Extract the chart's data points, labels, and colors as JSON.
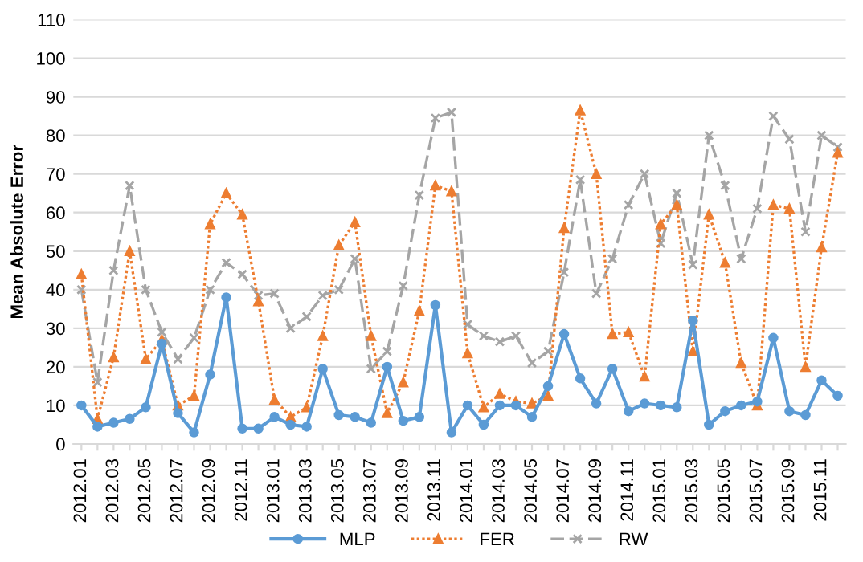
{
  "chart_data": {
    "type": "line",
    "ylabel": "Mean Absolute Error",
    "categories": [
      "2012.01",
      null,
      "2012.03",
      null,
      "2012.05",
      null,
      "2012.07",
      null,
      "2012.09",
      null,
      "2012.11",
      null,
      "2013.01",
      null,
      "2013.03",
      null,
      "2013.05",
      null,
      "2013.07",
      null,
      "2013.09",
      null,
      "2013.11",
      null,
      "2014.01",
      null,
      "2014.03",
      null,
      "2014.05",
      null,
      "2014.07",
      null,
      "2014.09",
      null,
      "2014.11",
      null,
      "2015.01",
      null,
      "2015.03",
      null,
      "2015.05",
      null,
      "2015.07",
      null,
      "2015.09",
      null,
      "2015.11",
      null
    ],
    "series": [
      {
        "name": "MLP",
        "color": "#5b9bd5",
        "marker": "circle",
        "line_style": "solid",
        "values": [
          10,
          4.5,
          5.5,
          6.5,
          9.5,
          26,
          8,
          3,
          18,
          38,
          4,
          4,
          7,
          5,
          4.5,
          19.5,
          7.5,
          7,
          5.5,
          20,
          6,
          7,
          36,
          3,
          10,
          5,
          10,
          10,
          7,
          15,
          28.5,
          17,
          10.5,
          19.5,
          8.5,
          10.5,
          10,
          9.5,
          32,
          5,
          8.5,
          10,
          11,
          27.5,
          8.5,
          7.5,
          16.5,
          12.5
        ]
      },
      {
        "name": "FER",
        "color": "#ed7d31",
        "marker": "triangle",
        "line_style": "dotted",
        "values": [
          44,
          6.5,
          22.5,
          50,
          22,
          27,
          10,
          12.5,
          57,
          65,
          59.5,
          37,
          11.5,
          7,
          9.5,
          28,
          51.5,
          57.5,
          28,
          8,
          16,
          34.5,
          67,
          65.5,
          23.5,
          9.5,
          13,
          11,
          10.5,
          12.5,
          56,
          86.5,
          70,
          28.5,
          29,
          17.5,
          57,
          62,
          24,
          59.5,
          47,
          21,
          10,
          62,
          61,
          20,
          51,
          75.5
        ]
      },
      {
        "name": "RW",
        "color": "#a5a5a5",
        "marker": "cross",
        "line_style": "dashed",
        "values": [
          40,
          16,
          45,
          67,
          40,
          29,
          22,
          27.5,
          40,
          47,
          44,
          38.5,
          39,
          30,
          33,
          38.5,
          40,
          48,
          19.5,
          24,
          41,
          64.5,
          84.5,
          86,
          31,
          28,
          26.5,
          28,
          21,
          24,
          44.5,
          68.5,
          39,
          48,
          62,
          70,
          52,
          65,
          46.5,
          80,
          67,
          48,
          61,
          85,
          79,
          55,
          80,
          77
        ]
      }
    ],
    "ylim": [
      0,
      110
    ],
    "yticks": [
      0,
      10,
      20,
      30,
      40,
      50,
      60,
      70,
      80,
      90,
      100,
      110
    ],
    "grid": "y",
    "legend": "bottom"
  }
}
